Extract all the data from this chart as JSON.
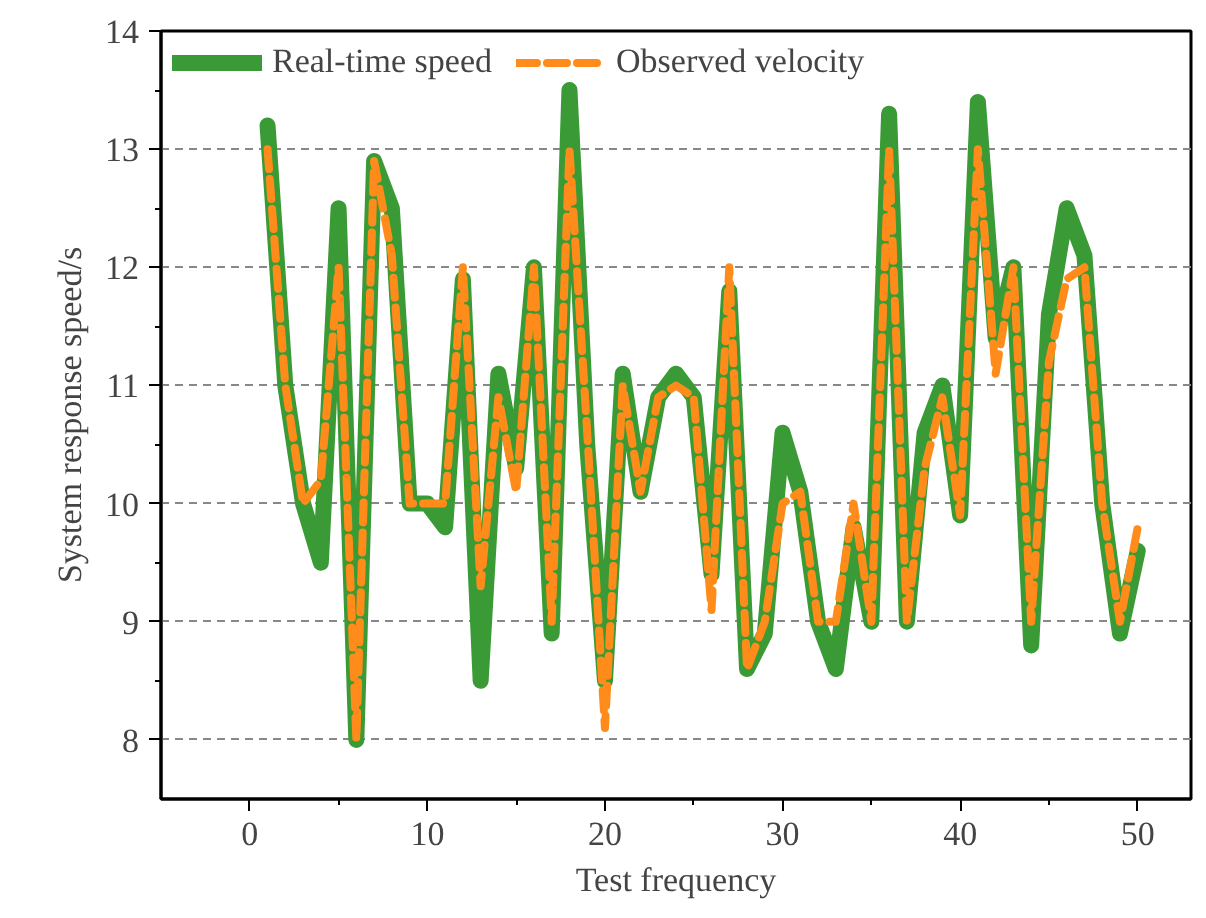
{
  "chart_data": {
    "type": "line",
    "xlabel": "Test frequency",
    "ylabel": "System response speed/s",
    "x": [
      1,
      2,
      3,
      4,
      5,
      6,
      7,
      8,
      9,
      10,
      11,
      12,
      13,
      14,
      15,
      16,
      17,
      18,
      19,
      20,
      21,
      22,
      23,
      24,
      25,
      26,
      27,
      28,
      29,
      30,
      31,
      32,
      33,
      34,
      35,
      36,
      37,
      38,
      39,
      40,
      41,
      42,
      43,
      44,
      45,
      46,
      47,
      48,
      49,
      50
    ],
    "series": [
      {
        "name": "Real-time speed",
        "color": "#3a9a35",
        "line_style": "solid",
        "values": [
          13.2,
          11.0,
          10.0,
          9.5,
          12.5,
          8.0,
          12.9,
          12.5,
          10.0,
          10.0,
          9.8,
          11.9,
          8.5,
          11.1,
          10.3,
          12.0,
          8.9,
          13.5,
          10.5,
          8.5,
          11.1,
          10.1,
          10.9,
          11.1,
          10.9,
          9.4,
          11.8,
          8.6,
          8.9,
          10.6,
          10.1,
          9.0,
          8.6,
          9.8,
          9.0,
          13.3,
          9.0,
          10.6,
          11.0,
          9.9,
          13.4,
          11.4,
          12.0,
          8.8,
          11.6,
          12.5,
          12.1,
          10.0,
          8.9,
          9.6
        ]
      },
      {
        "name": "Observed velocity",
        "color": "#ff8c1a",
        "line_style": "dashed",
        "values": [
          13.0,
          11.0,
          10.0,
          10.2,
          12.0,
          8.0,
          12.9,
          12.1,
          10.0,
          10.0,
          10.0,
          12.0,
          9.3,
          10.9,
          10.1,
          12.0,
          9.0,
          13.0,
          10.6,
          8.1,
          11.0,
          10.1,
          10.9,
          11.0,
          10.9,
          9.1,
          12.0,
          8.6,
          9.0,
          10.0,
          10.1,
          9.0,
          9.0,
          10.0,
          9.0,
          13.0,
          9.0,
          10.3,
          10.9,
          9.9,
          13.0,
          11.1,
          12.0,
          9.0,
          11.2,
          11.9,
          12.0,
          10.0,
          9.0,
          9.8
        ]
      }
    ],
    "xlim": [
      -5,
      53
    ],
    "xticks": [
      0,
      10,
      20,
      30,
      40,
      50
    ],
    "ylim": [
      7.5,
      14
    ],
    "yticks": [
      8,
      9,
      10,
      11,
      12,
      13,
      14
    ],
    "grid": "y",
    "legend": "top left",
    "marker": "none"
  }
}
